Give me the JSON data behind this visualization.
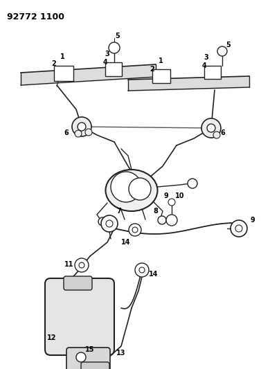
{
  "title": "92772 1100",
  "bg_color": "#ffffff",
  "line_color": "#222222",
  "label_color": "#000000",
  "figsize": [
    3.9,
    5.33
  ],
  "dpi": 100
}
